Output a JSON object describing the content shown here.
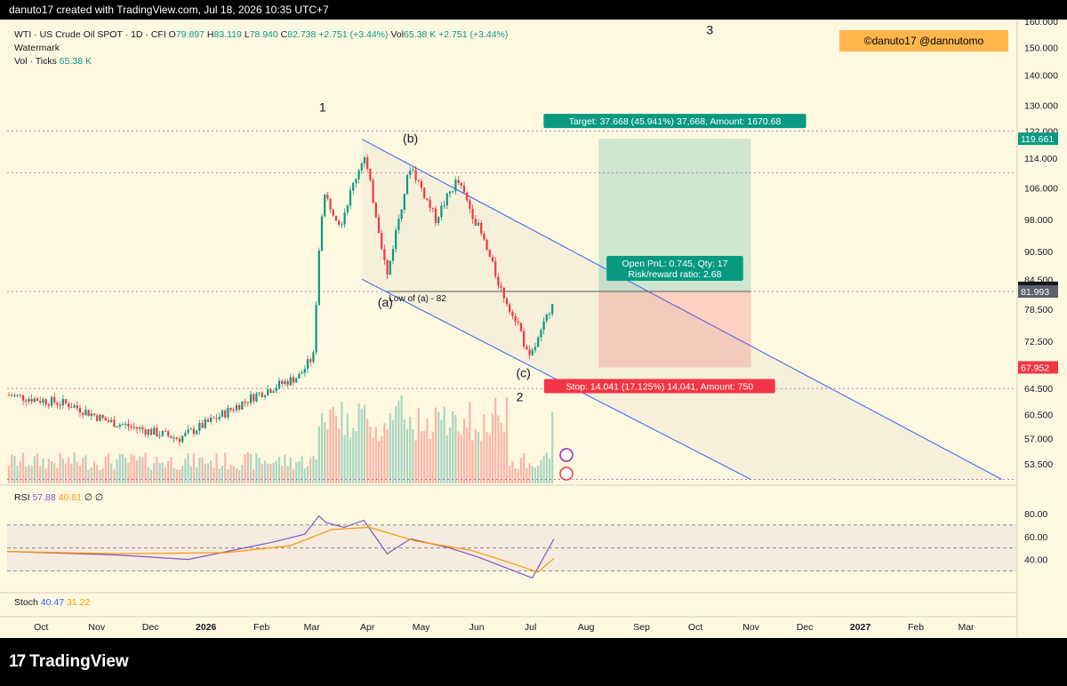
{
  "header": {
    "created_by": "danuto17 created with TradingView.com, Jul 18, 2026 10:35 UTC+7"
  },
  "legend": {
    "symbol": "WTI · US Crude Oil SPOT · 1D · CFI",
    "o_label": "O",
    "o": "79.897",
    "h_label": "H",
    "h": "83.119",
    "l_label": "L",
    "l": "78.940",
    "c_label": "C",
    "c": "82.738",
    "change": "+2.751 (+3.44%)",
    "vol_label": "Vol",
    "vol": "65.38 K",
    "vol_change": "+2.751 (+3.44%)",
    "watermark": "Watermark",
    "vol_ticks_label": "Vol · Ticks",
    "vol_ticks": "65.38 K"
  },
  "credit": "©danuto17   @dannutomo",
  "rsi_legend": {
    "label": "RSI",
    "v1": "57.88",
    "v2": "40.81",
    "v3": "∅",
    "v4": "∅"
  },
  "stoch_legend": {
    "label": "Stoch",
    "v1": "40.47",
    "v2": "31.22"
  },
  "branding": "TradingView",
  "colors": {
    "up": "#089981",
    "down": "#f23645",
    "background": "#fff8e1",
    "channel": "#2962ff",
    "rsi": "#7e57c2",
    "rsi_ma": "#ff9800"
  },
  "chart_data": {
    "type": "candlestick",
    "symbol": "WTI · US Crude Oil SPOT",
    "interval": "1D",
    "price_axis": {
      "ticks": [
        "160.000",
        "150.000",
        "140.000",
        "130.000",
        "122.000",
        "114.000",
        "106.000",
        "98.000",
        "90.500",
        "84.500",
        "78.500",
        "72.500",
        "64.500",
        "60.500",
        "57.000",
        "53.500"
      ],
      "scale": "log",
      "range": [
        51,
        160
      ]
    },
    "time_axis": {
      "ticks": [
        "Oct",
        "Nov",
        "Dec",
        "2026",
        "Feb",
        "Mar",
        "Apr",
        "May",
        "Jun",
        "Jul",
        "Aug",
        "Sep",
        "Oct",
        "Nov",
        "Dec",
        "2027",
        "Feb",
        "Mar"
      ]
    },
    "price_labels": [
      {
        "value": "119.661",
        "color": "#089981"
      },
      {
        "value": "82.738",
        "color": "#131722"
      },
      {
        "value": "81.993",
        "color": "#5d606b"
      },
      {
        "value": "67.952",
        "color": "#f23645"
      }
    ],
    "wave_labels": [
      {
        "text": "1",
        "date": "2026-03-10",
        "price": 128
      },
      {
        "text": "2",
        "date": "2026-06-28",
        "price": 62.5
      },
      {
        "text": "3",
        "date": "2026-10-12",
        "price": 155
      },
      {
        "text": "(a)",
        "date": "2026-04-14",
        "price": 79
      },
      {
        "text": "(b)",
        "date": "2026-04-28",
        "price": 118.5
      },
      {
        "text": "(c)",
        "date": "2026-06-30",
        "price": 66.3
      }
    ],
    "annotations": {
      "low_of_a": "Low of (a) - 82",
      "target": "Target: 37.668 (45.941%) 37,668, Amount: 1670.68",
      "pnl_line1": "Open PnL: 0.745, Qty: 17",
      "pnl_line2": "Risk/reward ratio: 2.68",
      "stop": "Stop: 14.041 (17.125%) 14,041, Amount: 750"
    },
    "position": {
      "entry": 82.0,
      "target": 119.661,
      "stop": 67.952
    },
    "key_levels": [
      122.0,
      110.0,
      81.993,
      64.5,
      51.5
    ],
    "channel": {
      "upper": [
        {
          "date": "2026-04-01",
          "price": 119.5
        },
        {
          "date": "2027-03-24",
          "price": 51.5
        }
      ],
      "lower": [
        {
          "date": "2026-04-01",
          "price": 84.5
        },
        {
          "date": "2026-11-04",
          "price": 51.5
        }
      ]
    },
    "ohlc_key_points": [
      {
        "date": "2025-09-15",
        "close": 63.5
      },
      {
        "date": "2025-10-20",
        "close": 62.0
      },
      {
        "date": "2025-11-10",
        "close": 59.5
      },
      {
        "date": "2025-12-20",
        "close": 57.0
      },
      {
        "date": "2026-01-10",
        "close": 60.0
      },
      {
        "date": "2026-02-01",
        "close": 63.5
      },
      {
        "date": "2026-02-25",
        "close": 66.5
      },
      {
        "date": "2026-03-05",
        "close": 70.0
      },
      {
        "date": "2026-03-09",
        "close": 98.0
      },
      {
        "date": "2026-03-11",
        "close": 104.0
      },
      {
        "date": "2026-03-20",
        "close": 97.0
      },
      {
        "date": "2026-04-02",
        "close": 115.0
      },
      {
        "date": "2026-04-15",
        "close": 85.0
      },
      {
        "date": "2026-04-28",
        "close": 112.0
      },
      {
        "date": "2026-05-12",
        "close": 98.0
      },
      {
        "date": "2026-05-24",
        "close": 108.0
      },
      {
        "date": "2026-06-05",
        "close": 96.0
      },
      {
        "date": "2026-06-14",
        "close": 86.0
      },
      {
        "date": "2026-06-18",
        "close": 82.0
      },
      {
        "date": "2026-06-28",
        "close": 75.0
      },
      {
        "date": "2026-07-03",
        "close": 69.0
      },
      {
        "date": "2026-07-10",
        "close": 74.0
      },
      {
        "date": "2026-07-16",
        "close": 79.9
      },
      {
        "date": "2026-07-17",
        "close": 82.738
      }
    ],
    "rsi_axis": {
      "ticks": [
        "80.00",
        "60.00",
        "40.00"
      ],
      "range": [
        15,
        100
      ],
      "bands": [
        70,
        50,
        30
      ]
    },
    "rsi_key_points": [
      {
        "date": "2025-09-15",
        "value": 47
      },
      {
        "date": "2025-11-15",
        "value": 44
      },
      {
        "date": "2025-12-25",
        "value": 40
      },
      {
        "date": "2026-02-10",
        "value": 55
      },
      {
        "date": "2026-02-28",
        "value": 62
      },
      {
        "date": "2026-03-08",
        "value": 78
      },
      {
        "date": "2026-03-12",
        "value": 72
      },
      {
        "date": "2026-03-22",
        "value": 68
      },
      {
        "date": "2026-04-02",
        "value": 74
      },
      {
        "date": "2026-04-15",
        "value": 45
      },
      {
        "date": "2026-04-28",
        "value": 58
      },
      {
        "date": "2026-05-20",
        "value": 50
      },
      {
        "date": "2026-06-05",
        "value": 42
      },
      {
        "date": "2026-06-20",
        "value": 33
      },
      {
        "date": "2026-07-05",
        "value": 24
      },
      {
        "date": "2026-07-17",
        "value": 57.88
      }
    ],
    "rsi_ma_key_points": [
      {
        "date": "2025-09-15",
        "value": 47
      },
      {
        "date": "2025-11-15",
        "value": 45
      },
      {
        "date": "2026-01-15",
        "value": 46
      },
      {
        "date": "2026-02-20",
        "value": 52
      },
      {
        "date": "2026-03-15",
        "value": 66
      },
      {
        "date": "2026-04-05",
        "value": 68
      },
      {
        "date": "2026-05-01",
        "value": 56
      },
      {
        "date": "2026-06-01",
        "value": 48
      },
      {
        "date": "2026-06-25",
        "value": 36
      },
      {
        "date": "2026-07-08",
        "value": 29
      },
      {
        "date": "2026-07-17",
        "value": 40.81
      }
    ]
  }
}
